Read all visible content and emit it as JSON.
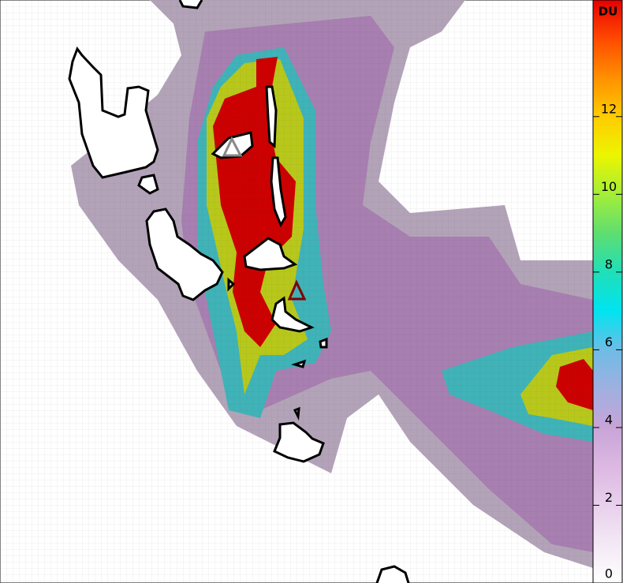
{
  "colorbar": {
    "label": "DU",
    "range": [
      0,
      15
    ],
    "ticks": [
      0,
      2,
      4,
      6,
      8,
      10,
      12
    ],
    "colors": [
      "#ffffff",
      "#f3e8f5",
      "#e8d0ec",
      "#dcb8e2",
      "#c8a4d8",
      "#9fb0e0",
      "#6ebce6",
      "#00e4f0",
      "#20dfb8",
      "#5ede70",
      "#a4ee38",
      "#ecf500",
      "#ffcc00",
      "#ff9000",
      "#ff4a00",
      "#e60000"
    ]
  }
}
